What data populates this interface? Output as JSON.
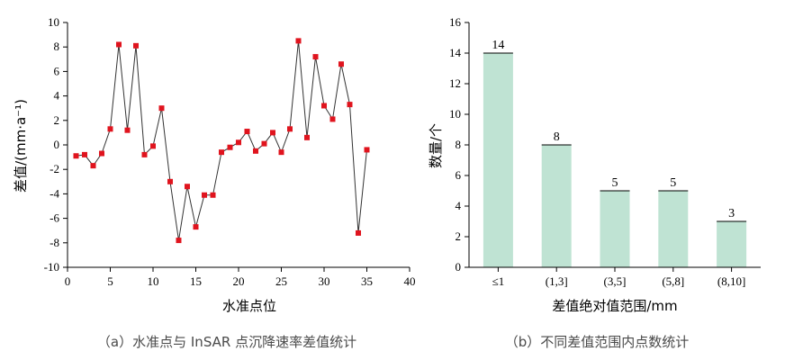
{
  "chart_data": [
    {
      "type": "line",
      "caption": "（a）水准点与 InSAR 点沉降速率差值统计",
      "xlabel": "水准点位",
      "ylabel": "差值/(mm·a⁻¹)",
      "xlim": [
        0,
        40
      ],
      "ylim": [
        -10,
        10
      ],
      "xticks": [
        "0",
        "5",
        "10",
        "15",
        "20",
        "25",
        "30",
        "35",
        "40"
      ],
      "yticks": [
        "-10",
        "-8",
        "-6",
        "-4",
        "-2",
        "0",
        "2",
        "4",
        "6",
        "8",
        "10"
      ],
      "grid": false,
      "marker_color": "#e0141e",
      "line_color": "#333333",
      "x": [
        1,
        2,
        3,
        4,
        5,
        6,
        7,
        8,
        9,
        10,
        11,
        12,
        13,
        14,
        15,
        16,
        17,
        18,
        19,
        20,
        21,
        22,
        23,
        24,
        25,
        26,
        27,
        28,
        29,
        30,
        31,
        32,
        33,
        34,
        35
      ],
      "y": [
        -0.9,
        -0.8,
        -1.7,
        -0.7,
        1.3,
        8.2,
        1.2,
        8.1,
        -0.8,
        -0.1,
        3.0,
        -3.0,
        -7.8,
        -3.4,
        -6.7,
        -4.1,
        -4.1,
        -0.6,
        -0.2,
        0.2,
        1.1,
        -0.5,
        0.1,
        1.0,
        -0.6,
        1.3,
        8.5,
        0.6,
        7.2,
        3.2,
        2.1,
        6.6,
        3.3,
        -7.2,
        -0.4
      ]
    },
    {
      "type": "bar",
      "caption": "（b）不同差值范围内点数统计",
      "xlabel": "差值绝对值范围/mm",
      "ylabel": "数量/个",
      "ylim": [
        0,
        16
      ],
      "yticks": [
        "0",
        "2",
        "4",
        "6",
        "8",
        "10",
        "12",
        "14",
        "16"
      ],
      "grid": false,
      "bar_color": "#bfe3d3",
      "categories": [
        "≤1",
        "(1,3]",
        "(3,5]",
        "(5,8]",
        "(8,10]"
      ],
      "values": [
        14,
        8,
        5,
        5,
        3
      ],
      "value_labels": [
        "14",
        "8",
        "5",
        "5",
        "3"
      ]
    }
  ]
}
